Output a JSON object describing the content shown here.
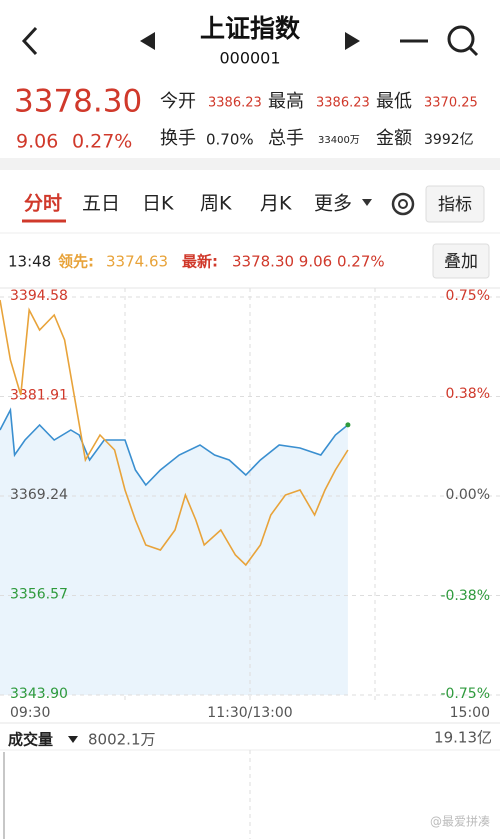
{
  "header": {
    "title": "上证指数",
    "code": "000001"
  },
  "quote": {
    "price": "3378.30",
    "change": "9.06",
    "change_pct": "0.27%",
    "open_label": "今开",
    "open": "3386.23",
    "high_label": "最高",
    "high": "3386.23",
    "low_label": "最低",
    "low": "3370.25",
    "turnover_label": "换手",
    "turnover": "0.70%",
    "volume_label": "总手",
    "volume": "33400万",
    "amount_label": "金额",
    "amount": "3992亿"
  },
  "tabs": [
    "分时",
    "五日",
    "日K",
    "周K",
    "月K",
    "更多"
  ],
  "indicator_button": "指标",
  "info": {
    "time": "13:48",
    "lead_label": "领先:",
    "lead": "3374.63",
    "latest_label": "最新:",
    "latest": "3378.30 9.06 0.27%",
    "overlay_button": "叠加"
  },
  "chart": {
    "type": "line",
    "ylim": [
      3343.9,
      3394.58
    ],
    "yticks": [
      3394.58,
      3381.91,
      3369.24,
      3356.57,
      {
        "value": 3343.9,
        "label": "3343.90"
      }
    ],
    "y2lim": [
      -0.75,
      0.75
    ],
    "y2ticks": [
      {
        "value": 0.75,
        "label": "0.75%"
      },
      {
        "value": 0.38,
        "label": "0.38%"
      },
      {
        "value": 0,
        "label": "0.00%"
      },
      {
        "value": -0.38,
        "label": "-0.38%"
      },
      {
        "value": -0.75,
        "label": "-0.75%"
      }
    ],
    "xlim": [
      0,
      240
    ],
    "xticks": [
      {
        "value": 0,
        "label": "09:30"
      },
      {
        "value": 120,
        "label": "11:30/13:00"
      },
      {
        "value": 240,
        "label": "15:00"
      }
    ],
    "series": [
      {
        "color": "#3a8fd0",
        "x": [
          0,
          5,
          7,
          12,
          19,
          26,
          34,
          38,
          43,
          50,
          60,
          65,
          70,
          77,
          86,
          96,
          103,
          110,
          118,
          125,
          134,
          144,
          154,
          161,
          167
        ],
        "values": [
          3377.64,
          3380.19,
          3374.46,
          3376.37,
          3378.28,
          3376.37,
          3377.64,
          3377.01,
          3373.82,
          3376.37,
          3376.37,
          3372.55,
          3370.64,
          3372.55,
          3374.46,
          3375.73,
          3374.46,
          3373.82,
          3371.91,
          3373.82,
          3375.73,
          3375.35,
          3374.46,
          3377.01,
          3378.3
        ]
      },
      {
        "color": "#e8a33a",
        "x": [
          0,
          5,
          10,
          14,
          19,
          26,
          31,
          36,
          41,
          48,
          55,
          60,
          65,
          70,
          77,
          84,
          89,
          94,
          98,
          106,
          113,
          118,
          125,
          130,
          137,
          144,
          151,
          156,
          161,
          167
        ],
        "values": [
          3394.2,
          3386.56,
          3382.1,
          3392.92,
          3390.38,
          3392.29,
          3389.1,
          3381.46,
          3373.82,
          3377.01,
          3375.1,
          3370.0,
          3366.18,
          3363.0,
          3362.36,
          3364.91,
          3369.37,
          3366.18,
          3363.0,
          3364.91,
          3361.73,
          3360.45,
          3363.0,
          3366.82,
          3369.37,
          3370.0,
          3366.82,
          3370.0,
          3372.55,
          3375.1
        ]
      }
    ]
  },
  "volume": {
    "label": "成交量",
    "value": "8002.1万",
    "max": "19.13亿"
  },
  "watermark": "@最爱拼凑"
}
